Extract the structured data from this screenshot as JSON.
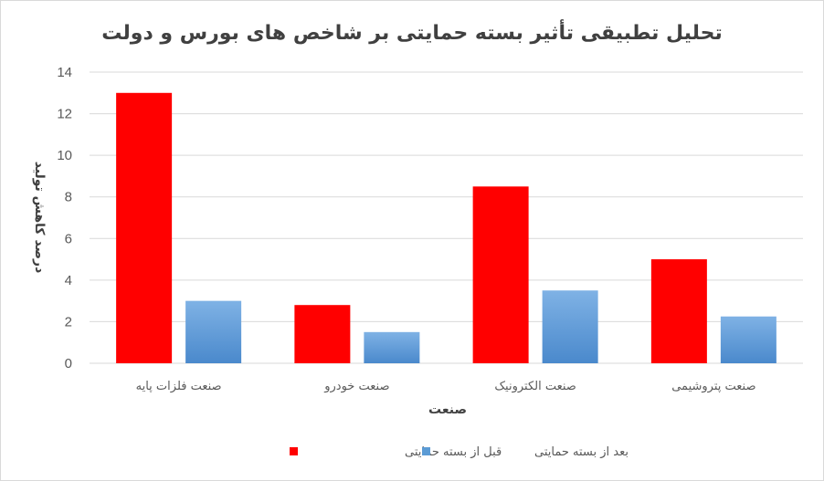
{
  "chart_data": {
    "type": "bar",
    "title": "تحلیل تطبیقی تأثیر بسته حمایتی بر شاخص های بورس و دولت",
    "xlabel": "صنعت",
    "ylabel": "درصد کاهش تولید",
    "categories": [
      "صنعت فلزات پایه",
      "صنعت خودرو",
      "صنعت الکترونیک",
      "صنعت پتروشیمی"
    ],
    "series": [
      {
        "name": "قبل از بسته حمایتی",
        "values": [
          13.0,
          2.8,
          8.5,
          5.0
        ],
        "color": "#ff0000"
      },
      {
        "name": "بعد از بسته حمایتی",
        "values": [
          3.0,
          1.5,
          3.5,
          2.25
        ],
        "color": "#5b9bd5"
      }
    ],
    "ylim": [
      0,
      14
    ],
    "yticks": [
      0,
      2,
      4,
      6,
      8,
      10,
      12,
      14
    ],
    "grid": true,
    "legend_position": "bottom"
  }
}
